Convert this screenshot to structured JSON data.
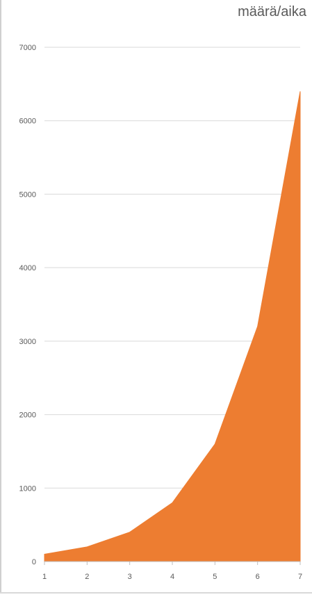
{
  "chart_data": {
    "type": "area",
    "title": "määrä/aika",
    "x": [
      1,
      2,
      3,
      4,
      5,
      6,
      7
    ],
    "series": [
      {
        "values": [
          100,
          200,
          400,
          800,
          1600,
          3200,
          6400
        ]
      }
    ],
    "xlabel": "",
    "ylabel": "",
    "ylim": [
      0,
      7000
    ],
    "yticks": [
      0,
      1000,
      2000,
      3000,
      4000,
      5000,
      6000,
      7000
    ],
    "grid": true,
    "fill_color": "#ED7D31",
    "grid_color": "#D9D9D9",
    "text_color": "#595959"
  }
}
